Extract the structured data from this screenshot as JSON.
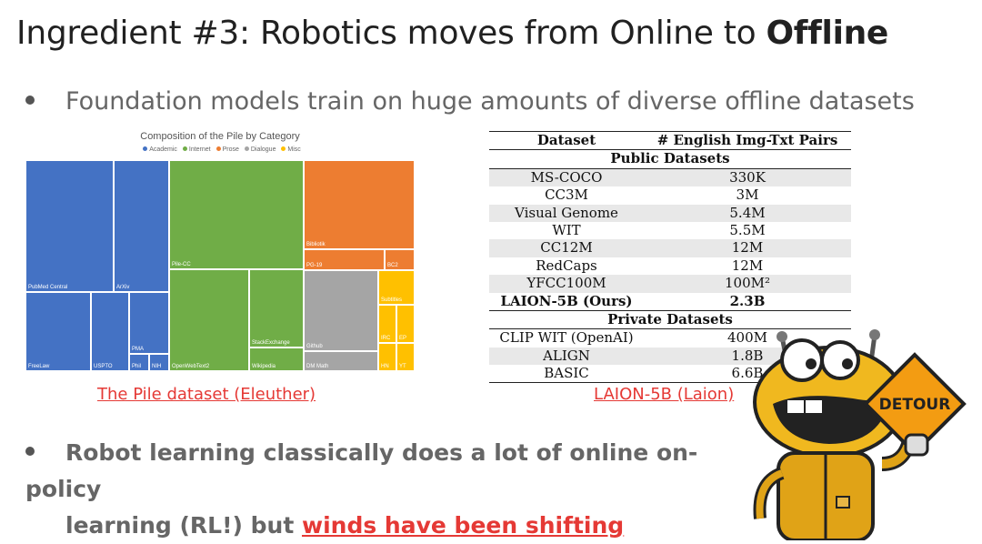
{
  "slide": {
    "title_plain": "Ingredient #3: Robotics moves from Online to ",
    "title_bold": "Offline",
    "bullet1": "Foundation models train on huge amounts of diverse offline datasets",
    "bullet2_line1": "Robot learning classically does a lot of online on-policy",
    "bullet2_line2_prefix": "learning (RL!) but ",
    "bullet2_link": "winds have been shifting"
  },
  "treemap": {
    "title": "Composition of the Pile by Category",
    "legend": [
      "Academic",
      "Internet",
      "Prose",
      "Dialogue",
      "Misc"
    ],
    "legend_colors": [
      "#4472c4",
      "#70ad47",
      "#ed7d31",
      "#a5a5a5",
      "#ffc000"
    ],
    "cells": [
      "PubMed Central",
      "ArXiv",
      "FreeLaw",
      "USPTO",
      "PMA",
      "Phil",
      "NIH",
      "Pile-CC",
      "OpenWebText2",
      "StackExchange",
      "Wikipedia",
      "Bibliotik",
      "PG-19",
      "BC2",
      "Github",
      "DM Math",
      "Subtitles",
      "IRC",
      "EP",
      "HN",
      "YT"
    ],
    "caption": "The Pile dataset (Eleuther)"
  },
  "table": {
    "col1": "Dataset",
    "col2": "# English Img-Txt Pairs",
    "section_public": "Public Datasets",
    "public_rows": [
      {
        "name": "MS-COCO",
        "value": "330K"
      },
      {
        "name": "CC3M",
        "value": "3M"
      },
      {
        "name": "Visual Genome",
        "value": "5.4M"
      },
      {
        "name": "WIT",
        "value": "5.5M"
      },
      {
        "name": "CC12M",
        "value": "12M"
      },
      {
        "name": "RedCaps",
        "value": "12M"
      },
      {
        "name": "YFCC100M",
        "value": "100M²"
      },
      {
        "name": "LAION-5B (Ours)",
        "value": "2.3B"
      }
    ],
    "section_private": "Private Datasets",
    "private_rows": [
      {
        "name": "CLIP WIT (OpenAI)",
        "value": "400M"
      },
      {
        "name": "ALIGN",
        "value": "1.8B"
      },
      {
        "name": "BASIC",
        "value": "6.6B"
      }
    ],
    "caption": "LAION-5B (Laion)"
  },
  "robot": {
    "sign_text": "DETOUR",
    "icon": "detour-robot-icon"
  }
}
